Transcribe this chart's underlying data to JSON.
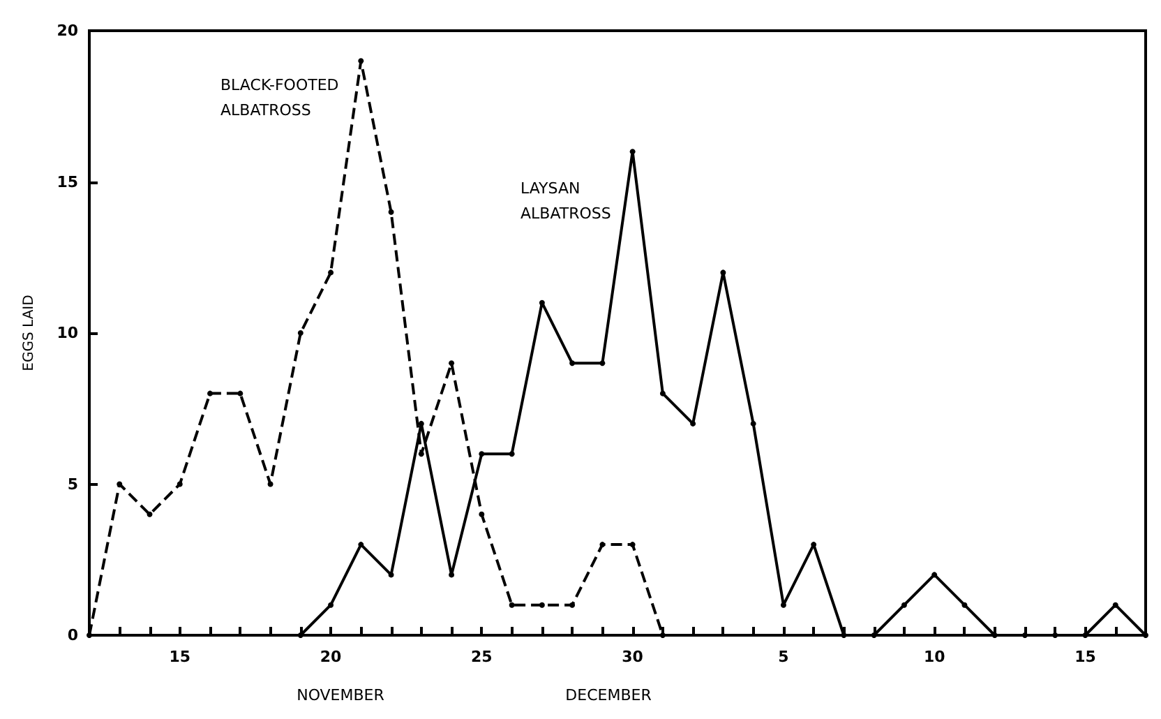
{
  "chart_data": {
    "type": "line",
    "ylabel": "EGGS LAID",
    "xlim": [
      "--11-12",
      "--12-17"
    ],
    "ylim": [
      0,
      20
    ],
    "yticks": [
      0,
      5,
      10,
      15,
      20
    ],
    "xticks": [
      {
        "value": "--11-12",
        "label": null
      },
      {
        "value": "--11-13",
        "label": null
      },
      {
        "value": "--11-14",
        "label": null
      },
      {
        "value": "--11-15",
        "label": "15"
      },
      {
        "value": "--11-16",
        "label": null
      },
      {
        "value": "--11-17",
        "label": null
      },
      {
        "value": "--11-18",
        "label": null
      },
      {
        "value": "--11-19",
        "label": null
      },
      {
        "value": "--11-20",
        "label": "20"
      },
      {
        "value": "--11-21",
        "label": null
      },
      {
        "value": "--11-22",
        "label": null
      },
      {
        "value": "--11-23",
        "label": null
      },
      {
        "value": "--11-24",
        "label": null
      },
      {
        "value": "--11-25",
        "label": "25"
      },
      {
        "value": "--11-26",
        "label": null
      },
      {
        "value": "--11-27",
        "label": null
      },
      {
        "value": "--11-28",
        "label": null
      },
      {
        "value": "--11-29",
        "label": null
      },
      {
        "value": "--11-30",
        "label": "30"
      },
      {
        "value": "--12-01",
        "label": null
      },
      {
        "value": "--12-02",
        "label": null
      },
      {
        "value": "--12-03",
        "label": null
      },
      {
        "value": "--12-04",
        "label": null
      },
      {
        "value": "--12-05",
        "label": "5"
      },
      {
        "value": "--12-06",
        "label": null
      },
      {
        "value": "--12-07",
        "label": null
      },
      {
        "value": "--12-08",
        "label": null
      },
      {
        "value": "--12-09",
        "label": null
      },
      {
        "value": "--12-10",
        "label": "10"
      },
      {
        "value": "--12-11",
        "label": null
      },
      {
        "value": "--12-12",
        "label": null
      },
      {
        "value": "--12-13",
        "label": null
      },
      {
        "value": "--12-14",
        "label": null
      },
      {
        "value": "--12-15",
        "label": "15"
      },
      {
        "value": "--12-16",
        "label": null
      },
      {
        "value": "--12-17",
        "label": null
      }
    ],
    "grid": false,
    "legend": false,
    "marker": "circle",
    "annotations": [
      "NOVEMBER",
      "DECEMBER"
    ],
    "series": [
      {
        "name": "BLACK-FOOTED ALBATROSS",
        "color": "#000000",
        "line_style": "dashed",
        "x": [
          "--11-12",
          "--11-13",
          "--11-14",
          "--11-15",
          "--11-16",
          "--11-17",
          "--11-18",
          "--11-19",
          "--11-20",
          "--11-21",
          "--11-22",
          "--11-23",
          "--11-24",
          "--11-25",
          "--11-26",
          "--11-27",
          "--11-28",
          "--11-29",
          "--11-30",
          "--12-01"
        ],
        "values": [
          0,
          5,
          4,
          5,
          8,
          8,
          5,
          10,
          12,
          19,
          14,
          6,
          9,
          4,
          1,
          1,
          1,
          3,
          3,
          0
        ]
      },
      {
        "name": "LAYSAN ALBATROSS",
        "color": "#000000",
        "line_style": "solid",
        "x": [
          "--11-19",
          "--11-20",
          "--11-21",
          "--11-22",
          "--11-23",
          "--11-24",
          "--11-25",
          "--11-26",
          "--11-27",
          "--11-28",
          "--11-29",
          "--11-30",
          "--12-01",
          "--12-02",
          "--12-03",
          "--12-04",
          "--12-05",
          "--12-06",
          "--12-07",
          "--12-08",
          "--12-09",
          "--12-10",
          "--12-11",
          "--12-12",
          "--12-13",
          "--12-14",
          "--12-15",
          "--12-16",
          "--12-17"
        ],
        "values": [
          0,
          1,
          3,
          2,
          7,
          2,
          6,
          6,
          11,
          9,
          9,
          16,
          8,
          7,
          12,
          7,
          1,
          3,
          0,
          0,
          1,
          2,
          1,
          0,
          0,
          0,
          0,
          1,
          0
        ]
      }
    ]
  }
}
